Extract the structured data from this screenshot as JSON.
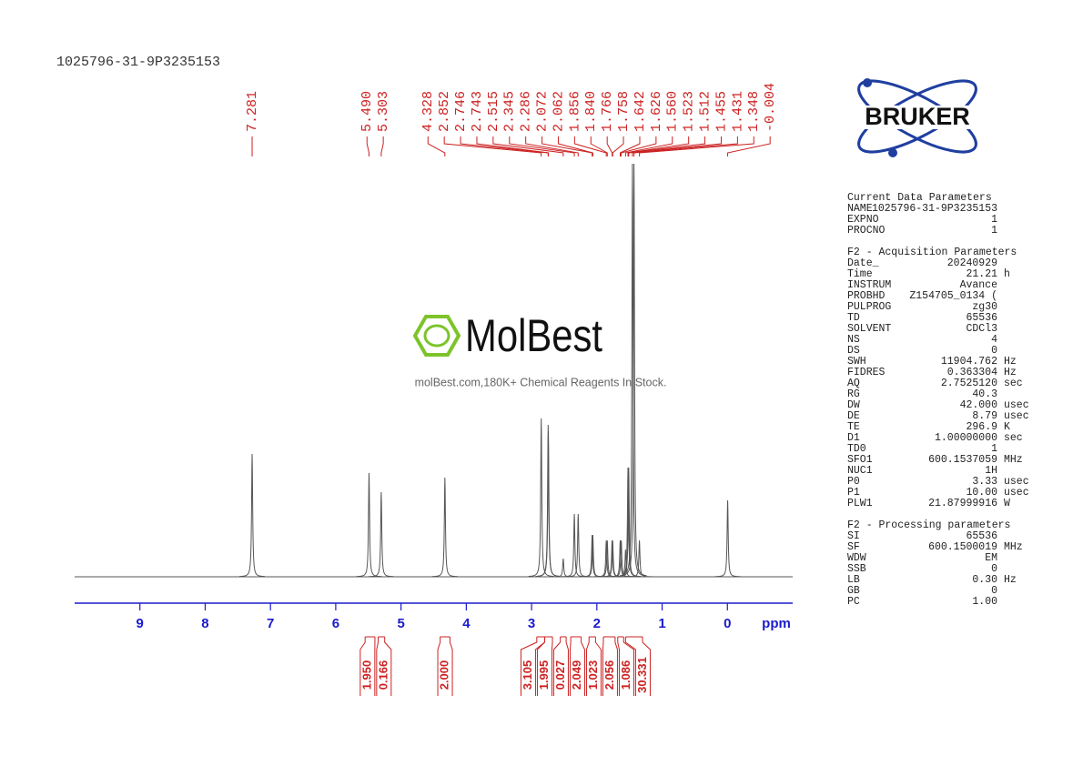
{
  "header": {
    "sample_id": "1025796-31-9P3235153"
  },
  "logos": {
    "bruker": "BRUKER",
    "watermark": "MolBest",
    "watermark_tagline": "molBest.com,180K+ Chemical Reagents In Stock."
  },
  "chart_data": {
    "type": "nmr",
    "x_label": "ppm",
    "xlim": [
      10,
      -1
    ],
    "xticks": [
      9,
      8,
      7,
      6,
      5,
      4,
      3,
      2,
      1,
      0
    ],
    "ylim": [
      0,
      460
    ],
    "color": "#555555",
    "label_color": "#cc2222",
    "axis_color": "#1a1acc",
    "peaks": {
      "values": [
        7.281,
        5.49,
        5.303,
        4.328,
        2.852,
        2.746,
        2.743,
        2.515,
        2.345,
        2.286,
        2.072,
        2.062,
        1.856,
        1.84,
        1.766,
        1.758,
        1.642,
        1.626,
        1.56,
        1.523,
        1.512,
        1.455,
        1.431,
        1.348,
        -0.004
      ],
      "value_labels": [
        "7.281",
        "5.490",
        "5.303",
        "4.328",
        "2.852",
        "2.746",
        "2.743",
        "2.515",
        "2.345",
        "2.286",
        "2.072",
        "2.062",
        "1.856",
        "1.840",
        "1.766",
        "1.758",
        "1.642",
        "1.626",
        "1.560",
        "1.523",
        "1.512",
        "1.455",
        "1.431",
        "1.348",
        "-0.004"
      ],
      "heights": [
        135,
        114,
        93,
        109,
        174,
        167,
        160,
        20,
        69,
        69,
        46,
        46,
        40,
        40,
        40,
        40,
        40,
        40,
        30,
        120,
        120,
        454,
        454,
        40,
        84
      ]
    },
    "integrals": {
      "ranges": [
        [
          5.55,
          5.4
        ],
        [
          5.35,
          5.25
        ],
        [
          4.4,
          4.25
        ],
        [
          2.92,
          2.8
        ],
        [
          2.8,
          2.68
        ],
        [
          2.56,
          2.47
        ],
        [
          2.4,
          2.24
        ],
        [
          2.12,
          2.02
        ],
        [
          1.9,
          1.72
        ],
        [
          1.68,
          1.59
        ],
        [
          1.56,
          1.3
        ]
      ],
      "values": [
        1.95,
        0.166,
        2,
        3.105,
        1.995,
        0.027,
        2.049,
        1.023,
        2.056,
        1.086,
        30.331
      ],
      "value_labels": [
        "1.950",
        "0.166",
        "2.000",
        "3.105",
        "1.995",
        "0.027",
        "2.049",
        "1.023",
        "2.056",
        "1.086",
        "30.331"
      ]
    }
  },
  "parameters": [
    {
      "title": "Current Data Parameters",
      "rows": [
        [
          "NAME",
          "1025796-31-9P3235153"
        ],
        [
          "EXPNO",
          "1"
        ],
        [
          "PROCNO",
          "1"
        ]
      ]
    },
    {
      "title": "F2 - Acquisition Parameters",
      "rows": [
        [
          "Date_",
          "20240929"
        ],
        [
          "Time",
          "21.21",
          "h"
        ],
        [
          "INSTRUM",
          "Avance"
        ],
        [
          "PROBHD",
          "Z154705_0134 ("
        ],
        [
          "PULPROG",
          "zg30"
        ],
        [
          "TD",
          "65536"
        ],
        [
          "SOLVENT",
          "CDCl3"
        ],
        [
          "NS",
          "4"
        ],
        [
          "DS",
          "0"
        ],
        [
          "SWH",
          "11904.762",
          "Hz"
        ],
        [
          "FIDRES",
          "0.363304",
          "Hz"
        ],
        [
          "AQ",
          "2.7525120",
          "sec"
        ],
        [
          "RG",
          "40.3"
        ],
        [
          "DW",
          "42.000",
          "usec"
        ],
        [
          "DE",
          "8.79",
          "usec"
        ],
        [
          "TE",
          "296.9",
          "K"
        ],
        [
          "D1",
          "1.00000000",
          "sec"
        ],
        [
          "TD0",
          "1"
        ],
        [
          "SFO1",
          "600.1537059",
          "MHz"
        ],
        [
          "NUC1",
          "1H"
        ],
        [
          "P0",
          "3.33",
          "usec"
        ],
        [
          "P1",
          "10.00",
          "usec"
        ],
        [
          "PLW1",
          "21.87999916",
          "W"
        ]
      ]
    },
    {
      "title": "F2 - Processing parameters",
      "rows": [
        [
          "SI",
          "65536"
        ],
        [
          "SF",
          "600.1500019",
          "MHz"
        ],
        [
          "WDW",
          "EM"
        ],
        [
          "SSB",
          "0"
        ],
        [
          "LB",
          "0.30",
          "Hz"
        ],
        [
          "GB",
          "0"
        ],
        [
          "PC",
          "1.00"
        ]
      ]
    }
  ]
}
